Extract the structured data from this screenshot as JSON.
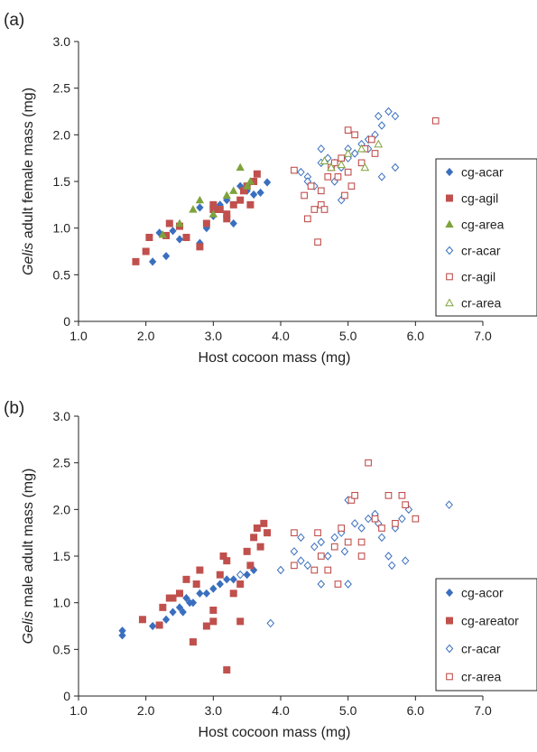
{
  "chart_data": [
    {
      "type": "scatter",
      "panel_label": "(a)",
      "xlabel": "Host cocoon mass (mg)",
      "ylabel_italic": "Gelis",
      "ylabel_rest": " adult female mass (mg)",
      "xlim": [
        1.0,
        7.0
      ],
      "ylim": [
        0,
        3.0
      ],
      "xticks": [
        "1.0",
        "2.0",
        "3.0",
        "4.0",
        "5.0",
        "6.0",
        "7.0"
      ],
      "yticks": [
        "0",
        "0.5",
        "1.0",
        "1.5",
        "2.0",
        "2.5",
        "3.0"
      ],
      "legend_position": "right",
      "series": [
        {
          "name": "cg-acar",
          "marker": "diamond-filled",
          "color": "#3a6fbf",
          "points": [
            [
              2.1,
              0.64
            ],
            [
              2.2,
              0.95
            ],
            [
              2.3,
              0.7
            ],
            [
              2.4,
              0.97
            ],
            [
              2.5,
              0.88
            ],
            [
              2.8,
              0.84
            ],
            [
              2.8,
              1.22
            ],
            [
              2.9,
              1.0
            ],
            [
              3.0,
              1.13
            ],
            [
              3.1,
              1.25
            ],
            [
              3.3,
              1.05
            ],
            [
              3.4,
              1.45
            ],
            [
              3.5,
              1.4
            ],
            [
              3.6,
              1.36
            ],
            [
              3.7,
              1.38
            ],
            [
              3.8,
              1.49
            ],
            [
              3.2,
              1.3
            ]
          ]
        },
        {
          "name": "cg-agil",
          "marker": "square-filled",
          "color": "#c0504d",
          "points": [
            [
              1.85,
              0.64
            ],
            [
              2.0,
              0.75
            ],
            [
              2.05,
              0.9
            ],
            [
              2.3,
              0.92
            ],
            [
              2.35,
              1.05
            ],
            [
              2.5,
              1.02
            ],
            [
              2.6,
              0.9
            ],
            [
              2.8,
              0.8
            ],
            [
              2.9,
              1.05
            ],
            [
              3.0,
              1.25
            ],
            [
              3.1,
              1.2
            ],
            [
              3.2,
              1.1
            ],
            [
              3.3,
              1.25
            ],
            [
              3.4,
              1.3
            ],
            [
              3.45,
              1.4
            ],
            [
              3.5,
              1.45
            ],
            [
              3.55,
              1.25
            ],
            [
              3.6,
              1.5
            ],
            [
              3.65,
              1.58
            ],
            [
              3.0,
              1.2
            ],
            [
              3.2,
              1.15
            ]
          ]
        },
        {
          "name": "cg-area",
          "marker": "triangle-filled",
          "color": "#7ea33c",
          "points": [
            [
              2.25,
              0.93
            ],
            [
              2.5,
              1.05
            ],
            [
              2.7,
              1.2
            ],
            [
              2.8,
              1.3
            ],
            [
              3.0,
              1.15
            ],
            [
              3.2,
              1.35
            ],
            [
              3.3,
              1.4
            ],
            [
              3.4,
              1.65
            ],
            [
              3.5,
              1.45
            ],
            [
              3.55,
              1.5
            ]
          ]
        },
        {
          "name": "cr-acar",
          "marker": "diamond-open",
          "color": "#3a6fbf",
          "points": [
            [
              4.3,
              1.6
            ],
            [
              4.4,
              1.55
            ],
            [
              4.5,
              1.45
            ],
            [
              4.6,
              1.7
            ],
            [
              4.7,
              1.75
            ],
            [
              4.8,
              1.7
            ],
            [
              4.9,
              1.65
            ],
            [
              5.0,
              1.85
            ],
            [
              5.1,
              1.8
            ],
            [
              5.2,
              1.9
            ],
            [
              5.3,
              1.95
            ],
            [
              5.4,
              2.0
            ],
            [
              5.45,
              2.2
            ],
            [
              5.5,
              2.1
            ],
            [
              5.6,
              2.25
            ],
            [
              5.7,
              2.2
            ],
            [
              5.7,
              1.65
            ],
            [
              5.5,
              1.55
            ],
            [
              4.8,
              1.5
            ],
            [
              4.9,
              1.3
            ],
            [
              5.0,
              1.75
            ],
            [
              5.3,
              1.85
            ],
            [
              4.6,
              1.85
            ],
            [
              4.4,
              1.5
            ]
          ]
        },
        {
          "name": "cr-agil",
          "marker": "square-open",
          "color": "#c0504d",
          "points": [
            [
              4.2,
              1.62
            ],
            [
              4.35,
              1.35
            ],
            [
              4.4,
              1.1
            ],
            [
              4.5,
              1.2
            ],
            [
              4.55,
              0.85
            ],
            [
              4.6,
              1.25
            ],
            [
              4.7,
              1.55
            ],
            [
              4.75,
              1.65
            ],
            [
              4.8,
              1.7
            ],
            [
              4.85,
              1.55
            ],
            [
              4.9,
              1.75
            ],
            [
              5.0,
              1.6
            ],
            [
              5.0,
              2.05
            ],
            [
              5.1,
              2.0
            ],
            [
              5.2,
              1.7
            ],
            [
              5.25,
              1.85
            ],
            [
              5.35,
              1.95
            ],
            [
              5.4,
              1.8
            ],
            [
              6.3,
              2.15
            ],
            [
              4.6,
              1.4
            ],
            [
              4.65,
              1.2
            ],
            [
              4.45,
              1.45
            ],
            [
              4.95,
              1.35
            ],
            [
              5.05,
              1.45
            ]
          ]
        },
        {
          "name": "cr-area",
          "marker": "triangle-open",
          "color": "#7ea33c",
          "points": [
            [
              4.65,
              1.72
            ],
            [
              4.9,
              1.68
            ],
            [
              5.0,
              1.8
            ],
            [
              5.2,
              1.85
            ],
            [
              5.25,
              1.65
            ],
            [
              5.45,
              1.9
            ],
            [
              4.75,
              1.65
            ]
          ]
        }
      ]
    },
    {
      "type": "scatter",
      "panel_label": "(b)",
      "xlabel": "Host cocoon mass (mg)",
      "ylabel_italic": "Gelis",
      "ylabel_rest": " male adult mass (mg)",
      "xlim": [
        1.0,
        7.0
      ],
      "ylim": [
        0,
        3.0
      ],
      "xticks": [
        "1.0",
        "2.0",
        "3.0",
        "4.0",
        "5.0",
        "6.0",
        "7.0"
      ],
      "yticks": [
        "0",
        "0.5",
        "1.0",
        "1.5",
        "2.0",
        "2.5",
        "3.0"
      ],
      "legend_position": "bottom-right",
      "series": [
        {
          "name": "cg-acor",
          "marker": "diamond-filled",
          "color": "#3a6fbf",
          "points": [
            [
              1.65,
              0.7
            ],
            [
              1.65,
              0.65
            ],
            [
              2.1,
              0.75
            ],
            [
              2.3,
              0.82
            ],
            [
              2.4,
              0.9
            ],
            [
              2.5,
              0.95
            ],
            [
              2.6,
              1.05
            ],
            [
              2.7,
              1.0
            ],
            [
              2.8,
              1.1
            ],
            [
              2.9,
              1.1
            ],
            [
              3.0,
              1.15
            ],
            [
              3.1,
              1.2
            ],
            [
              3.2,
              1.25
            ],
            [
              3.3,
              1.25
            ],
            [
              3.5,
              1.3
            ],
            [
              3.6,
              1.35
            ],
            [
              2.55,
              0.9
            ],
            [
              2.65,
              1.0
            ]
          ]
        },
        {
          "name": "cg-areator",
          "marker": "square-filled",
          "color": "#c0504d",
          "points": [
            [
              1.95,
              0.82
            ],
            [
              2.2,
              0.76
            ],
            [
              2.25,
              0.95
            ],
            [
              2.35,
              1.05
            ],
            [
              2.5,
              1.1
            ],
            [
              2.6,
              1.25
            ],
            [
              2.7,
              0.58
            ],
            [
              2.75,
              1.2
            ],
            [
              2.8,
              1.35
            ],
            [
              3.0,
              0.8
            ],
            [
              3.1,
              1.3
            ],
            [
              3.15,
              1.5
            ],
            [
              3.2,
              1.45
            ],
            [
              3.2,
              0.28
            ],
            [
              3.3,
              1.1
            ],
            [
              3.4,
              1.2
            ],
            [
              3.5,
              1.55
            ],
            [
              3.6,
              1.7
            ],
            [
              3.7,
              1.6
            ],
            [
              3.75,
              1.85
            ],
            [
              3.8,
              1.75
            ],
            [
              3.65,
              1.8
            ],
            [
              2.4,
              1.05
            ],
            [
              3.0,
              0.92
            ],
            [
              3.4,
              0.8
            ],
            [
              2.9,
              0.75
            ],
            [
              3.55,
              1.4
            ]
          ]
        },
        {
          "name": "cr-acar",
          "marker": "diamond-open",
          "color": "#3a6fbf",
          "points": [
            [
              3.85,
              0.78
            ],
            [
              3.4,
              1.3
            ],
            [
              4.0,
              1.35
            ],
            [
              4.2,
              1.55
            ],
            [
              4.3,
              1.7
            ],
            [
              4.4,
              1.4
            ],
            [
              4.5,
              1.6
            ],
            [
              4.6,
              1.65
            ],
            [
              4.7,
              1.5
            ],
            [
              4.8,
              1.7
            ],
            [
              4.9,
              1.75
            ],
            [
              5.0,
              2.1
            ],
            [
              5.1,
              1.85
            ],
            [
              5.2,
              1.8
            ],
            [
              5.3,
              1.9
            ],
            [
              5.4,
              1.95
            ],
            [
              5.5,
              1.7
            ],
            [
              5.6,
              1.5
            ],
            [
              5.7,
              1.8
            ],
            [
              5.8,
              1.9
            ],
            [
              5.9,
              2.0
            ],
            [
              6.5,
              2.05
            ],
            [
              5.0,
              1.2
            ],
            [
              4.6,
              1.2
            ],
            [
              5.45,
              1.85
            ],
            [
              4.3,
              1.45
            ],
            [
              5.65,
              1.4
            ],
            [
              5.85,
              1.45
            ],
            [
              4.95,
              1.55
            ]
          ]
        },
        {
          "name": "cr-area",
          "marker": "square-open",
          "color": "#c0504d",
          "points": [
            [
              4.2,
              1.4
            ],
            [
              4.2,
              1.75
            ],
            [
              4.5,
              1.35
            ],
            [
              4.55,
              1.75
            ],
            [
              4.7,
              1.35
            ],
            [
              4.8,
              1.6
            ],
            [
              4.85,
              1.2
            ],
            [
              4.9,
              1.8
            ],
            [
              5.0,
              1.65
            ],
            [
              5.05,
              2.1
            ],
            [
              5.1,
              2.15
            ],
            [
              5.2,
              1.5
            ],
            [
              5.3,
              2.5
            ],
            [
              5.4,
              1.9
            ],
            [
              5.5,
              1.8
            ],
            [
              5.6,
              2.15
            ],
            [
              5.7,
              1.85
            ],
            [
              5.8,
              2.15
            ],
            [
              5.85,
              2.05
            ],
            [
              6.0,
              1.9
            ],
            [
              5.2,
              1.65
            ],
            [
              4.6,
              1.5
            ]
          ]
        }
      ]
    }
  ]
}
